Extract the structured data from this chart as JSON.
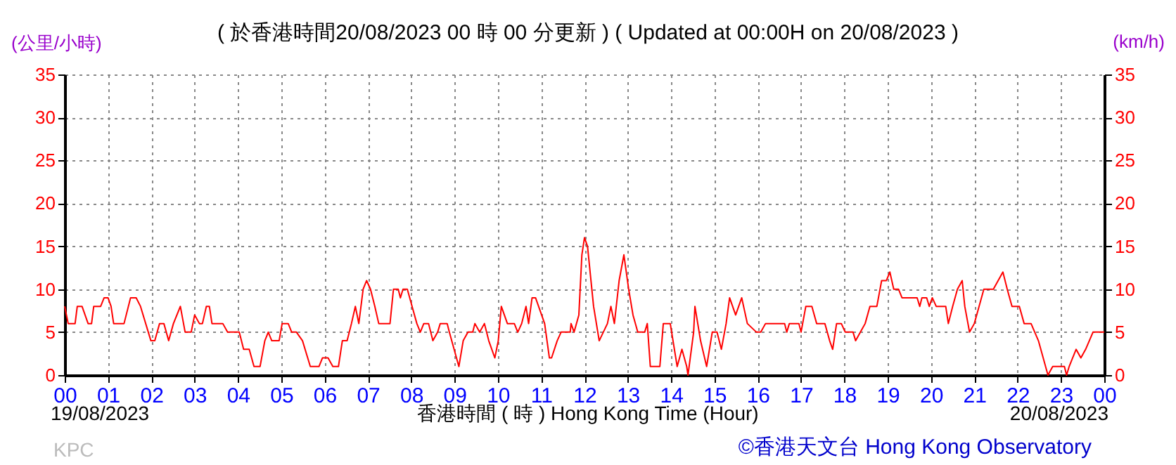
{
  "chart_data": {
    "type": "line",
    "title": "( 於香港時間20/08/2023 00 時 00 分更新 ) ( Updated at 00:00H on 20/08/2023 )",
    "xlabel": "香港時間 ( 時 ) Hong Kong Time (Hour)",
    "ylabel": "(公里/小時)",
    "y2label": "(km/h)",
    "annotations": [
      "19/08/2023",
      "20/08/2023",
      "KPC",
      "©香港天文台 Hong Kong Observatory"
    ],
    "x": [
      0.0,
      0.08,
      0.24,
      0.29,
      0.4,
      0.54,
      0.62,
      0.67,
      0.83,
      0.91,
      1.0,
      1.07,
      1.13,
      1.37,
      1.52,
      1.65,
      1.75,
      1.99,
      2.08,
      2.19,
      2.29,
      2.4,
      2.51,
      2.67,
      2.78,
      2.92,
      3.0,
      3.11,
      3.18,
      3.27,
      3.34,
      3.4,
      3.65,
      3.76,
      4.03,
      4.13,
      4.26,
      4.37,
      4.51,
      4.62,
      4.7,
      4.78,
      4.95,
      5.02,
      5.16,
      5.24,
      5.35,
      5.49,
      5.67,
      5.87,
      5.95,
      6.08,
      6.19,
      6.32,
      6.41,
      6.52,
      6.62,
      6.71,
      6.79,
      6.89,
      6.97,
      7.06,
      7.16,
      7.25,
      7.4,
      7.51,
      7.59,
      7.7,
      7.75,
      7.81,
      7.91,
      8.02,
      8.13,
      8.21,
      8.29,
      8.4,
      8.5,
      8.61,
      8.67,
      8.83,
      8.88,
      8.99,
      9.1,
      9.2,
      9.31,
      9.42,
      9.47,
      9.58,
      9.69,
      9.79,
      9.93,
      10.01,
      10.08,
      10.22,
      10.38,
      10.46,
      10.55,
      10.65,
      10.71,
      10.79,
      10.87,
      11.08,
      11.19,
      11.24,
      11.37,
      11.46,
      11.67,
      11.69,
      11.76,
      11.87,
      11.94,
      12.0,
      12.07,
      12.21,
      12.34,
      12.53,
      12.61,
      12.69,
      12.8,
      12.91,
      13.02,
      13.12,
      13.23,
      13.39,
      13.45,
      13.52,
      13.74,
      13.82,
      13.98,
      14.14,
      14.25,
      14.36,
      14.39,
      14.52,
      14.55,
      14.68,
      14.82,
      14.95,
      15.06,
      15.16,
      15.27,
      15.35,
      15.49,
      15.63,
      15.76,
      15.97,
      16.07,
      16.18,
      16.62,
      16.67,
      16.73,
      16.95,
      17.0,
      17.11,
      17.25,
      17.36,
      17.55,
      17.66,
      17.73,
      17.82,
      17.93,
      18.02,
      18.2,
      18.26,
      18.37,
      18.48,
      18.59,
      18.75,
      18.86,
      18.97,
      19.05,
      19.14,
      19.25,
      19.33,
      19.68,
      19.74,
      19.79,
      19.9,
      19.96,
      20.03,
      20.12,
      20.34,
      20.4,
      20.5,
      20.61,
      20.72,
      20.78,
      20.89,
      21.0,
      21.11,
      21.22,
      21.44,
      21.55,
      21.66,
      21.76,
      21.87,
      22.04,
      22.15,
      22.31,
      22.48,
      22.59,
      22.7,
      22.81,
      23.08,
      23.13,
      23.19,
      23.35,
      23.46,
      23.57,
      23.74,
      24.0
    ],
    "series": [
      {
        "color": "#ff0000",
        "values": [
          8,
          6,
          6,
          8,
          8,
          6,
          6,
          8,
          8,
          9,
          9,
          8,
          6,
          6,
          9,
          9,
          8,
          4,
          4,
          6,
          6,
          4,
          6,
          8,
          5,
          5,
          7,
          6,
          6,
          8,
          8,
          6,
          6,
          5,
          5,
          3,
          3,
          1,
          1,
          4,
          5,
          4,
          4,
          6,
          6,
          5,
          5,
          4,
          1,
          1,
          2,
          2,
          1,
          1,
          4,
          4,
          6,
          8,
          6,
          10,
          11,
          10,
          8,
          6,
          6,
          6,
          10,
          10,
          9,
          10,
          10,
          8,
          6,
          5,
          6,
          6,
          4,
          5,
          6,
          6,
          5,
          3,
          1,
          4,
          5,
          5,
          6,
          5,
          6,
          4,
          2,
          4,
          8,
          6,
          6,
          5,
          6,
          8,
          6,
          9,
          9,
          6,
          2,
          2,
          4,
          5,
          5,
          6,
          5,
          7,
          14,
          16,
          15,
          8,
          4,
          6,
          8,
          6,
          11,
          14,
          10,
          7,
          5,
          5,
          6,
          1,
          1,
          6,
          6,
          1,
          3,
          1,
          0,
          5,
          8,
          4,
          1,
          5,
          5,
          3,
          6,
          9,
          7,
          9,
          6,
          5,
          5,
          6,
          6,
          5,
          6,
          6,
          5,
          8,
          8,
          6,
          6,
          4,
          3,
          6,
          6,
          5,
          5,
          4,
          5,
          6,
          8,
          8,
          11,
          11,
          12,
          10,
          10,
          9,
          9,
          8,
          9,
          9,
          8,
          9,
          8,
          8,
          6,
          8,
          10,
          11,
          8,
          5,
          6,
          8,
          10,
          10,
          11,
          12,
          10,
          8,
          8,
          6,
          6,
          4,
          2,
          0,
          1,
          1,
          0,
          1,
          3,
          2,
          3,
          5,
          5
        ]
      }
    ],
    "xlim": [
      0,
      24
    ],
    "xticks": [
      {
        "value": 0,
        "label": "00"
      },
      {
        "value": 1,
        "label": "01"
      },
      {
        "value": 2,
        "label": "02"
      },
      {
        "value": 3,
        "label": "03"
      },
      {
        "value": 4,
        "label": "04"
      },
      {
        "value": 5,
        "label": "05"
      },
      {
        "value": 6,
        "label": "06"
      },
      {
        "value": 7,
        "label": "07"
      },
      {
        "value": 8,
        "label": "08"
      },
      {
        "value": 9,
        "label": "09"
      },
      {
        "value": 10,
        "label": "10"
      },
      {
        "value": 11,
        "label": "11"
      },
      {
        "value": 12,
        "label": "12"
      },
      {
        "value": 13,
        "label": "13"
      },
      {
        "value": 14,
        "label": "14"
      },
      {
        "value": 15,
        "label": "15"
      },
      {
        "value": 16,
        "label": "16"
      },
      {
        "value": 17,
        "label": "17"
      },
      {
        "value": 18,
        "label": "18"
      },
      {
        "value": 19,
        "label": "19"
      },
      {
        "value": 20,
        "label": "20"
      },
      {
        "value": 21,
        "label": "21"
      },
      {
        "value": 22,
        "label": "22"
      },
      {
        "value": 23,
        "label": "23"
      },
      {
        "value": 24,
        "label": "00"
      }
    ],
    "ylim": [
      0,
      35
    ],
    "yticks": [
      0,
      5,
      10,
      15,
      20,
      25,
      30,
      35
    ],
    "y2lim": [
      0,
      35
    ],
    "y2ticks": [
      0,
      5,
      10,
      15,
      20,
      25,
      30,
      35
    ],
    "grid": true,
    "marker": "none",
    "line_style": "solid"
  }
}
